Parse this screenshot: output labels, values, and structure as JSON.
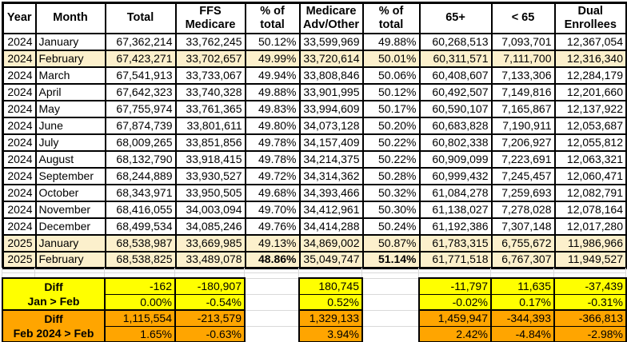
{
  "columns": [
    "Year",
    "Month",
    "Total",
    "FFS\nMedicare",
    "% of\ntotal",
    "Medicare\nAdv/Other",
    "% of\ntotal",
    "65+",
    "< 65",
    "Dual\nEnrollees"
  ],
  "rows": [
    {
      "year": "2024",
      "month": "January",
      "cells": [
        "67,362,214",
        "33,762,245",
        "50.12%",
        "33,599,969",
        "49.88%",
        "60,268,513",
        "7,093,701",
        "12,367,054"
      ],
      "highlight": false,
      "bold": []
    },
    {
      "year": "2024",
      "month": "February",
      "cells": [
        "67,423,271",
        "33,702,657",
        "49.99%",
        "33,720,614",
        "50.01%",
        "60,311,571",
        "7,111,700",
        "12,316,340"
      ],
      "highlight": true,
      "bold": []
    },
    {
      "year": "2024",
      "month": "March",
      "cells": [
        "67,541,913",
        "33,733,067",
        "49.94%",
        "33,808,846",
        "50.06%",
        "60,408,607",
        "7,133,306",
        "12,284,179"
      ],
      "highlight": false,
      "bold": []
    },
    {
      "year": "2024",
      "month": "April",
      "cells": [
        "67,642,323",
        "33,740,328",
        "49.88%",
        "33,901,995",
        "50.12%",
        "60,492,507",
        "7,149,816",
        "12,201,660"
      ],
      "highlight": false,
      "bold": []
    },
    {
      "year": "2024",
      "month": "May",
      "cells": [
        "67,755,974",
        "33,761,365",
        "49.83%",
        "33,994,609",
        "50.17%",
        "60,590,107",
        "7,165,867",
        "12,137,922"
      ],
      "highlight": false,
      "bold": []
    },
    {
      "year": "2024",
      "month": "June",
      "cells": [
        "67,874,739",
        "33,801,611",
        "49.80%",
        "34,073,128",
        "50.20%",
        "60,683,828",
        "7,190,911",
        "12,053,687"
      ],
      "highlight": false,
      "bold": []
    },
    {
      "year": "2024",
      "month": "July",
      "cells": [
        "68,009,265",
        "33,851,856",
        "49.78%",
        "34,157,409",
        "50.22%",
        "60,802,338",
        "7,206,927",
        "12,055,812"
      ],
      "highlight": false,
      "bold": []
    },
    {
      "year": "2024",
      "month": "August",
      "cells": [
        "68,132,790",
        "33,918,415",
        "49.78%",
        "34,214,375",
        "50.22%",
        "60,909,099",
        "7,223,691",
        "12,063,321"
      ],
      "highlight": false,
      "bold": []
    },
    {
      "year": "2024",
      "month": "September",
      "cells": [
        "68,244,889",
        "33,930,527",
        "49.72%",
        "34,314,362",
        "50.28%",
        "60,999,432",
        "7,245,457",
        "12,060,471"
      ],
      "highlight": false,
      "bold": []
    },
    {
      "year": "2024",
      "month": "October",
      "cells": [
        "68,343,971",
        "33,950,505",
        "49.68%",
        "34,393,466",
        "50.32%",
        "61,084,278",
        "7,259,693",
        "12,082,791"
      ],
      "highlight": false,
      "bold": []
    },
    {
      "year": "2024",
      "month": "November",
      "cells": [
        "68,416,055",
        "34,003,094",
        "49.70%",
        "34,412,961",
        "50.30%",
        "61,138,027",
        "7,278,028",
        "12,078,164"
      ],
      "highlight": false,
      "bold": []
    },
    {
      "year": "2024",
      "month": "December",
      "cells": [
        "68,499,534",
        "34,085,246",
        "49.76%",
        "34,414,288",
        "50.24%",
        "61,192,386",
        "7,307,148",
        "12,017,280"
      ],
      "highlight": false,
      "bold": []
    },
    {
      "year": "2025",
      "month": "January",
      "cells": [
        "68,538,987",
        "33,669,985",
        "49.13%",
        "34,869,002",
        "50.87%",
        "61,783,315",
        "6,755,672",
        "11,986,966"
      ],
      "highlight": true,
      "bold": []
    },
    {
      "year": "2025",
      "month": "February",
      "cells": [
        "68,538,825",
        "33,489,078",
        "48.86%",
        "35,049,747",
        "51.14%",
        "61,771,518",
        "6,767,307",
        "11,949,527"
      ],
      "highlight": true,
      "bold": [
        2,
        4
      ]
    }
  ],
  "summary": {
    "labels": [
      {
        "line1": "Diff",
        "line2": "Jan > Feb"
      },
      {
        "line1": "Diff",
        "line2": "Feb 2024 > Feb"
      }
    ],
    "values": [
      [
        "-162",
        "-180,907",
        "180,745",
        "-11,797",
        "11,635",
        "-37,439"
      ],
      [
        "0.00%",
        "-0.54%",
        "0.52%",
        "-0.02%",
        "0.17%",
        "-0.31%"
      ],
      [
        "1,115,554",
        "-213,579",
        "1,329,133",
        "1,459,947",
        "-344,393",
        "-366,813"
      ],
      [
        "1.65%",
        "-0.63%",
        "3.94%",
        "2.42%",
        "-4.84%",
        "-2.98%"
      ]
    ]
  },
  "colors": {
    "row_highlight": "#fcf0cc",
    "summary_yellow": "#ffff00",
    "summary_orange": "#ffa500",
    "border": "#000000",
    "gridline": "#d9d9d9"
  }
}
